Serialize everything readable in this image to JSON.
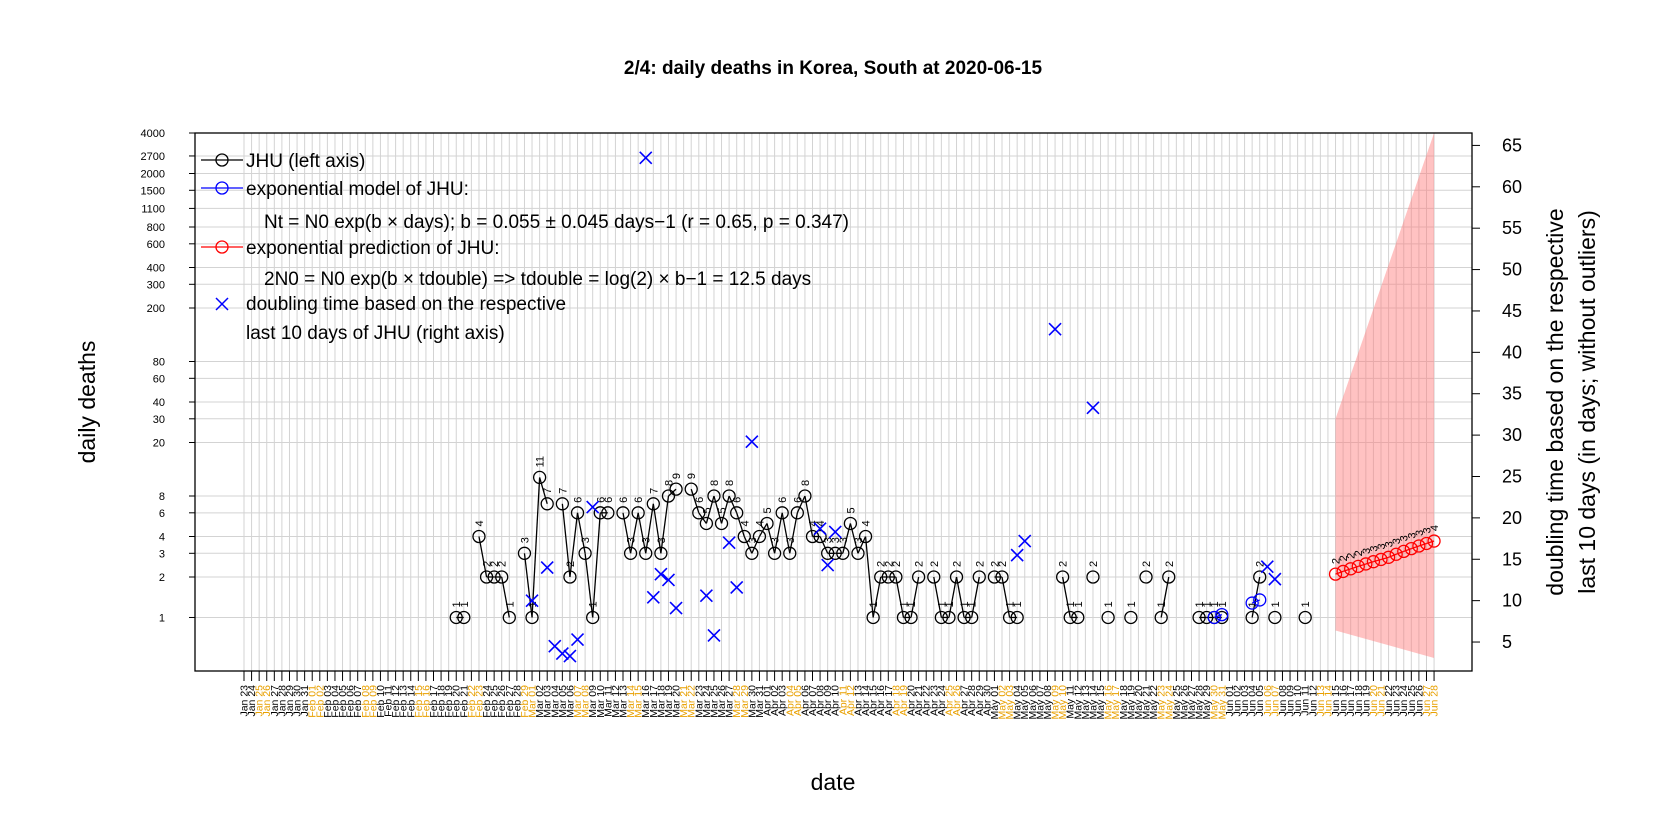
{
  "chart_data": {
    "type": "line",
    "title": "2/4: daily deaths in Korea, South at 2020-06-15",
    "xlabel": "date",
    "ylabel_left": "daily deaths",
    "ylabel_right_line1": "doubling time based on the respective",
    "ylabel_right_line2": "last 10 days (in days; without outliers)",
    "left_axis": {
      "scale": "log",
      "range": [
        0.4,
        4000
      ],
      "ticks": [
        1,
        2,
        3,
        4,
        6,
        8,
        20,
        30,
        40,
        60,
        80,
        200,
        300,
        400,
        600,
        800,
        1100,
        1500,
        2000,
        2700,
        4000
      ],
      "tick_labels": [
        "1",
        "2",
        "3",
        "4",
        "6",
        "8",
        "20",
        "30",
        "40",
        "60",
        "80",
        "200",
        "300",
        "400",
        "600",
        "800",
        "1100",
        "1500",
        "2000",
        "2700",
        "4000"
      ]
    },
    "right_axis": {
      "range": [
        1.5,
        66.5
      ],
      "ticks": [
        5,
        10,
        15,
        20,
        25,
        30,
        35,
        40,
        45,
        50,
        55,
        60,
        65
      ],
      "tick_labels": [
        "5",
        "10",
        "15",
        "20",
        "25",
        "30",
        "35",
        "40",
        "45",
        "50",
        "55",
        "60",
        "65"
      ]
    },
    "x_dates": [
      "Jan 23",
      "Jan 24",
      "Jan 25",
      "Jan 26",
      "Jan 27",
      "Jan 28",
      "Jan 29",
      "Jan 30",
      "Jan 31",
      "Feb 01",
      "Feb 02",
      "Feb 03",
      "Feb 04",
      "Feb 05",
      "Feb 06",
      "Feb 07",
      "Feb 08",
      "Feb 09",
      "Feb 10",
      "Feb 11",
      "Feb 12",
      "Feb 13",
      "Feb 14",
      "Feb 15",
      "Feb 16",
      "Feb 17",
      "Feb 18",
      "Feb 19",
      "Feb 20",
      "Feb 21",
      "Feb 22",
      "Feb 23",
      "Feb 24",
      "Feb 25",
      "Feb 26",
      "Feb 27",
      "Feb 28",
      "Feb 29",
      "Mar 01",
      "Mar 02",
      "Mar 03",
      "Mar 04",
      "Mar 05",
      "Mar 06",
      "Mar 07",
      "Mar 08",
      "Mar 09",
      "Mar 10",
      "Mar 11",
      "Mar 12",
      "Mar 13",
      "Mar 14",
      "Mar 15",
      "Mar 16",
      "Mar 17",
      "Mar 18",
      "Mar 19",
      "Mar 20",
      "Mar 21",
      "Mar 22",
      "Mar 23",
      "Mar 24",
      "Mar 25",
      "Mar 26",
      "Mar 27",
      "Mar 28",
      "Mar 29",
      "Mar 30",
      "Mar 31",
      "Apr 01",
      "Apr 02",
      "Apr 03",
      "Apr 04",
      "Apr 05",
      "Apr 06",
      "Apr 07",
      "Apr 08",
      "Apr 09",
      "Apr 10",
      "Apr 11",
      "Apr 12",
      "Apr 13",
      "Apr 14",
      "Apr 15",
      "Apr 16",
      "Apr 17",
      "Apr 18",
      "Apr 19",
      "Apr 20",
      "Apr 21",
      "Apr 22",
      "Apr 23",
      "Apr 24",
      "Apr 25",
      "Apr 26",
      "Apr 27",
      "Apr 28",
      "Apr 29",
      "Apr 30",
      "May 01",
      "May 02",
      "May 03",
      "May 04",
      "May 05",
      "May 06",
      "May 07",
      "May 08",
      "May 09",
      "May 10",
      "May 11",
      "May 12",
      "May 13",
      "May 14",
      "May 15",
      "May 16",
      "May 17",
      "May 18",
      "May 19",
      "May 20",
      "May 21",
      "May 22",
      "May 23",
      "May 24",
      "May 25",
      "May 26",
      "May 27",
      "May 28",
      "May 29",
      "May 30",
      "May 31",
      "Jun 01",
      "Jun 02",
      "Jun 03",
      "Jun 04",
      "Jun 05",
      "Jun 06",
      "Jun 07",
      "Jun 08",
      "Jun 09",
      "Jun 10",
      "Jun 11",
      "Jun 12",
      "Jun 13",
      "Jun 14",
      "Jun 15",
      "Jun 16",
      "Jun 17",
      "Jun 18",
      "Jun 19",
      "Jun 20",
      "Jun 21",
      "Jun 22",
      "Jun 23",
      "Jun 24",
      "Jun 25",
      "Jun 26",
      "Jun 27",
      "Jun 28"
    ],
    "highlighted_dates": [
      "Jan 25",
      "Jan 26",
      "Feb 01",
      "Feb 02",
      "Feb 08",
      "Feb 09",
      "Feb 15",
      "Feb 16",
      "Feb 22",
      "Feb 23",
      "Feb 29",
      "Mar 01",
      "Mar 07",
      "Mar 08",
      "Mar 14",
      "Mar 15",
      "Mar 21",
      "Mar 22",
      "Mar 28",
      "Mar 29",
      "Apr 04",
      "Apr 05",
      "Apr 11",
      "Apr 12",
      "Apr 18",
      "Apr 19",
      "Apr 25",
      "Apr 26",
      "May 02",
      "May 03",
      "May 09",
      "May 10",
      "May 16",
      "May 17",
      "May 23",
      "May 24",
      "May 30",
      "May 31",
      "Jun 06",
      "Jun 07",
      "Jun 13",
      "Jun 14",
      "Jun 20",
      "Jun 21",
      "Jun 27",
      "Jun 28"
    ],
    "highlight_color": "#e8a000",
    "series": [
      {
        "name": "JHU (left axis)",
        "color": "#000000",
        "points": [
          {
            "date": "Feb 20",
            "value": 1
          },
          {
            "date": "Feb 21",
            "value": 1
          },
          {
            "date": "Feb 23",
            "value": 4
          },
          {
            "date": "Feb 24",
            "value": 2
          },
          {
            "date": "Feb 25",
            "value": 2
          },
          {
            "date": "Feb 26",
            "value": 2
          },
          {
            "date": "Feb 27",
            "value": 1
          },
          {
            "date": "Feb 29",
            "value": 3
          },
          {
            "date": "Mar 01",
            "value": 1
          },
          {
            "date": "Mar 02",
            "value": 11
          },
          {
            "date": "Mar 03",
            "value": 7
          },
          {
            "date": "Mar 05",
            "value": 7
          },
          {
            "date": "Mar 06",
            "value": 2
          },
          {
            "date": "Mar 07",
            "value": 6
          },
          {
            "date": "Mar 08",
            "value": 3
          },
          {
            "date": "Mar 09",
            "value": 1
          },
          {
            "date": "Mar 10",
            "value": 6
          },
          {
            "date": "Mar 11",
            "value": 6
          },
          {
            "date": "Mar 13",
            "value": 6
          },
          {
            "date": "Mar 14",
            "value": 3
          },
          {
            "date": "Mar 15",
            "value": 6
          },
          {
            "date": "Mar 16",
            "value": 3
          },
          {
            "date": "Mar 17",
            "value": 7
          },
          {
            "date": "Mar 18",
            "value": 3
          },
          {
            "date": "Mar 19",
            "value": 8
          },
          {
            "date": "Mar 20",
            "value": 9
          },
          {
            "date": "Mar 22",
            "value": 9
          },
          {
            "date": "Mar 23",
            "value": 6
          },
          {
            "date": "Mar 24",
            "value": 5
          },
          {
            "date": "Mar 25",
            "value": 8
          },
          {
            "date": "Mar 26",
            "value": 5
          },
          {
            "date": "Mar 27",
            "value": 8
          },
          {
            "date": "Mar 28",
            "value": 6
          },
          {
            "date": "Mar 29",
            "value": 4
          },
          {
            "date": "Mar 30",
            "value": 3
          },
          {
            "date": "Mar 31",
            "value": 4
          },
          {
            "date": "Apr 01",
            "value": 5
          },
          {
            "date": "Apr 02",
            "value": 3
          },
          {
            "date": "Apr 03",
            "value": 6
          },
          {
            "date": "Apr 04",
            "value": 3
          },
          {
            "date": "Apr 05",
            "value": 6
          },
          {
            "date": "Apr 06",
            "value": 8
          },
          {
            "date": "Apr 07",
            "value": 4
          },
          {
            "date": "Apr 08",
            "value": 4
          },
          {
            "date": "Apr 09",
            "value": 3
          },
          {
            "date": "Apr 10",
            "value": 3
          },
          {
            "date": "Apr 11",
            "value": 3
          },
          {
            "date": "Apr 12",
            "value": 5
          },
          {
            "date": "Apr 13",
            "value": 3
          },
          {
            "date": "Apr 14",
            "value": 4
          },
          {
            "date": "Apr 15",
            "value": 1
          },
          {
            "date": "Apr 16",
            "value": 2
          },
          {
            "date": "Apr 17",
            "value": 2
          },
          {
            "date": "Apr 18",
            "value": 2
          },
          {
            "date": "Apr 19",
            "value": 1
          },
          {
            "date": "Apr 20",
            "value": 1
          },
          {
            "date": "Apr 21",
            "value": 2
          },
          {
            "date": "Apr 23",
            "value": 2
          },
          {
            "date": "Apr 24",
            "value": 1
          },
          {
            "date": "Apr 25",
            "value": 1
          },
          {
            "date": "Apr 26",
            "value": 2
          },
          {
            "date": "Apr 27",
            "value": 1
          },
          {
            "date": "Apr 28",
            "value": 1
          },
          {
            "date": "Apr 29",
            "value": 2
          },
          {
            "date": "May 01",
            "value": 2
          },
          {
            "date": "May 02",
            "value": 2
          },
          {
            "date": "May 03",
            "value": 1
          },
          {
            "date": "May 04",
            "value": 1
          },
          {
            "date": "May 10",
            "value": 2
          },
          {
            "date": "May 11",
            "value": 1
          },
          {
            "date": "May 12",
            "value": 1
          },
          {
            "date": "May 14",
            "value": 2
          },
          {
            "date": "May 16",
            "value": 1
          },
          {
            "date": "May 19",
            "value": 1
          },
          {
            "date": "May 21",
            "value": 2
          },
          {
            "date": "May 23",
            "value": 1
          },
          {
            "date": "May 24",
            "value": 2
          },
          {
            "date": "May 28",
            "value": 1
          },
          {
            "date": "May 29",
            "value": 1
          },
          {
            "date": "May 30",
            "value": 1
          },
          {
            "date": "May 31",
            "value": 1
          },
          {
            "date": "Jun 04",
            "value": 1
          },
          {
            "date": "Jun 05",
            "value": 2
          },
          {
            "date": "Jun 07",
            "value": 1
          },
          {
            "date": "Jun 11",
            "value": 1
          }
        ]
      },
      {
        "name": "exponential model of JHU:",
        "formula": "Nt = N0 exp(b × days); b = 0.055 ± 0.045 days−1 (r = 0.65, p = 0.347)",
        "color": "#0000ff",
        "points": [
          {
            "date": "May 30",
            "value": 1.0
          },
          {
            "date": "May 31",
            "value": 1.05
          },
          {
            "date": "Jun 04",
            "value": 1.28
          },
          {
            "date": "Jun 05",
            "value": 1.35
          }
        ]
      },
      {
        "name": "exponential prediction of JHU:",
        "formula": "2N0 = N0 exp(b × tdouble) => tdouble = log(2) × b−1 = 12.5 days",
        "color": "#ff0000",
        "band_color": "rgba(255,120,120,0.45)",
        "points": [
          {
            "date": "Jun 15",
            "value": 2.1
          },
          {
            "date": "Jun 16",
            "value": 2.2
          },
          {
            "date": "Jun 17",
            "value": 2.3
          },
          {
            "date": "Jun 18",
            "value": 2.4
          },
          {
            "date": "Jun 19",
            "value": 2.5
          },
          {
            "date": "Jun 20",
            "value": 2.6
          },
          {
            "date": "Jun 21",
            "value": 2.7
          },
          {
            "date": "Jun 22",
            "value": 2.8
          },
          {
            "date": "Jun 23",
            "value": 2.95
          },
          {
            "date": "Jun 24",
            "value": 3.1
          },
          {
            "date": "Jun 25",
            "value": 3.25
          },
          {
            "date": "Jun 26",
            "value": 3.4
          },
          {
            "date": "Jun 27",
            "value": 3.55
          },
          {
            "date": "Jun 28",
            "value": 3.7
          }
        ],
        "point_labels": [
          "2",
          "2",
          "2",
          "2",
          "3",
          "3",
          "3",
          "3",
          "3",
          "3",
          "3",
          "3",
          "3",
          "4"
        ],
        "band_upper_start": 30,
        "band_upper_end": 4000,
        "band_lower_start": 0.8,
        "band_lower_end": 0.5
      },
      {
        "name": "doubling time based on the respective last 10 days of JHU (right axis)",
        "legend_line1": "doubling time based on the respective",
        "legend_line2": "last 10 days of JHU (right axis)",
        "color": "#0000ff",
        "marker": "x",
        "points": [
          {
            "date": "Mar 01",
            "value": 10
          },
          {
            "date": "Mar 03",
            "value": 14
          },
          {
            "date": "Mar 04",
            "value": 4.5
          },
          {
            "date": "Mar 05",
            "value": 3.6
          },
          {
            "date": "Mar 06",
            "value": 3.3
          },
          {
            "date": "Mar 07",
            "value": 5.3
          },
          {
            "date": "Mar 09",
            "value": 21.3
          },
          {
            "date": "Mar 16",
            "value": 63.5
          },
          {
            "date": "Mar 17",
            "value": 10.4
          },
          {
            "date": "Mar 18",
            "value": 13.2
          },
          {
            "date": "Mar 19",
            "value": 12.5
          },
          {
            "date": "Mar 20",
            "value": 9.1
          },
          {
            "date": "Mar 24",
            "value": 10.6
          },
          {
            "date": "Mar 25",
            "value": 5.8
          },
          {
            "date": "Mar 27",
            "value": 17.0
          },
          {
            "date": "Mar 28",
            "value": 11.6
          },
          {
            "date": "Mar 30",
            "value": 29.2
          },
          {
            "date": "Apr 08",
            "value": 18.7
          },
          {
            "date": "Apr 09",
            "value": 14.3
          },
          {
            "date": "Apr 10",
            "value": 18.3
          },
          {
            "date": "May 04",
            "value": 15.5
          },
          {
            "date": "May 05",
            "value": 17.2
          },
          {
            "date": "May 09",
            "value": 42.8
          },
          {
            "date": "May 14",
            "value": 33.3
          },
          {
            "date": "Jun 06",
            "value": 14.1
          },
          {
            "date": "Jun 07",
            "value": 12.6
          }
        ]
      }
    ],
    "legend": {
      "placement": "top-left",
      "jhu": "JHU (left axis)",
      "model": "exponential model of JHU:",
      "model_formula": "Nt = N0 exp(b × days); b = 0.055 ± 0.045 days−1 (r = 0.65, p = 0.347)",
      "prediction": "exponential prediction of JHU:",
      "prediction_formula": "2N0 = N0 exp(b × tdouble) => tdouble = log(2) × b−1 = 12.5 days",
      "doubling_line1": "doubling time based on the respective",
      "doubling_line2": "last 10 days of JHU (right axis)"
    },
    "grid": true
  }
}
